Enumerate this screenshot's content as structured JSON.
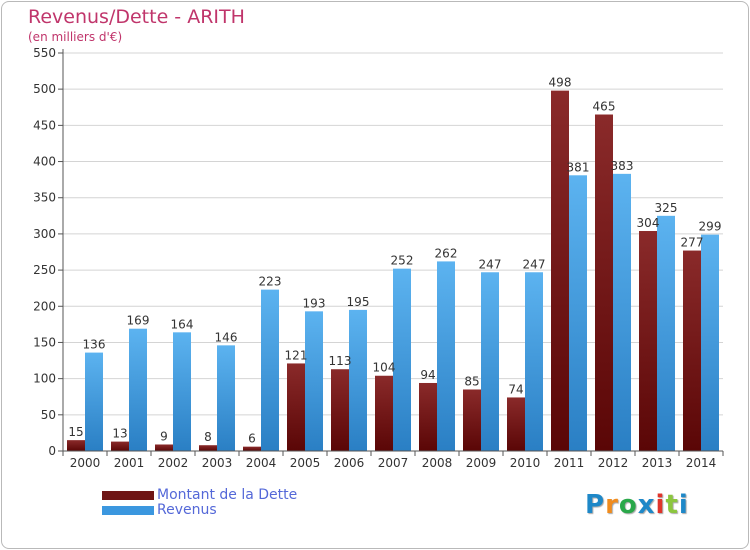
{
  "title": "Revenus/Dette - ARITH",
  "subtitle": "(en milliers d'€)",
  "colors": {
    "dette": "#6e1515",
    "revenus": "#3b97df",
    "title": "#c0356b",
    "legend_text": "#5468d8",
    "grid": "#d4d4d4"
  },
  "legend": {
    "items": [
      {
        "label": "Montant de la Dette",
        "color": "#6e1515"
      },
      {
        "label": "Revenus",
        "color": "#3b97df"
      }
    ]
  },
  "logo": {
    "letters": [
      "P",
      "r",
      "o",
      "x",
      "i",
      "t",
      "i"
    ],
    "colors": [
      "#1e88c8",
      "#f08c1e",
      "#2aa84a",
      "#1e88c8",
      "#e0342a",
      "#8cc63e",
      "#1e88c8"
    ]
  },
  "chart_data": {
    "type": "bar",
    "title": "Revenus/Dette - ARITH",
    "subtitle": "(en milliers d'€)",
    "xlabel": "",
    "ylabel": "",
    "ylim": [
      0,
      550
    ],
    "yticks": [
      0,
      50,
      100,
      150,
      200,
      250,
      300,
      350,
      400,
      450,
      500,
      550
    ],
    "grid": true,
    "legend_position": "bottom-left",
    "categories": [
      "2000",
      "2001",
      "2002",
      "2003",
      "2004",
      "2005",
      "2006",
      "2007",
      "2008",
      "2009",
      "2010",
      "2011",
      "2012",
      "2013",
      "2014"
    ],
    "series": [
      {
        "name": "Montant de la Dette",
        "color": "#6e1515",
        "values": [
          15,
          13,
          9,
          8,
          6,
          121,
          113,
          104,
          94,
          85,
          74,
          498,
          465,
          304,
          277
        ]
      },
      {
        "name": "Revenus",
        "color": "#3b97df",
        "values": [
          136,
          169,
          164,
          146,
          223,
          193,
          195,
          252,
          262,
          247,
          247,
          381,
          383,
          325,
          299
        ]
      }
    ]
  }
}
